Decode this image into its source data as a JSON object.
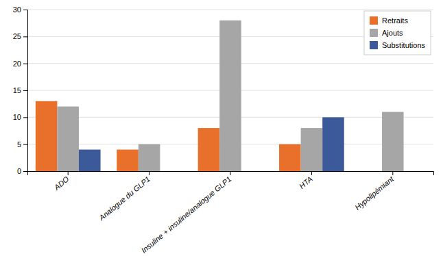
{
  "chart_data": {
    "type": "bar",
    "categories": [
      "ADO",
      "Analogue du GLP1",
      "Insuline + insuline/analogue GLP1",
      "HTA",
      "Hypolipémiant"
    ],
    "series": [
      {
        "name": "Retraits",
        "color": "#E8702A",
        "values": [
          13,
          4,
          8,
          5,
          0
        ]
      },
      {
        "name": "Ajouts",
        "color": "#A6A6A6",
        "values": [
          12,
          5,
          28,
          8,
          11
        ]
      },
      {
        "name": "Substitutions",
        "color": "#3C5A9A",
        "values": [
          4,
          0,
          0,
          10,
          0
        ]
      }
    ],
    "ylim": [
      0,
      30
    ],
    "yticks": [
      0,
      5,
      10,
      15,
      20,
      25,
      30
    ],
    "grid": true,
    "legend": "upper right"
  }
}
